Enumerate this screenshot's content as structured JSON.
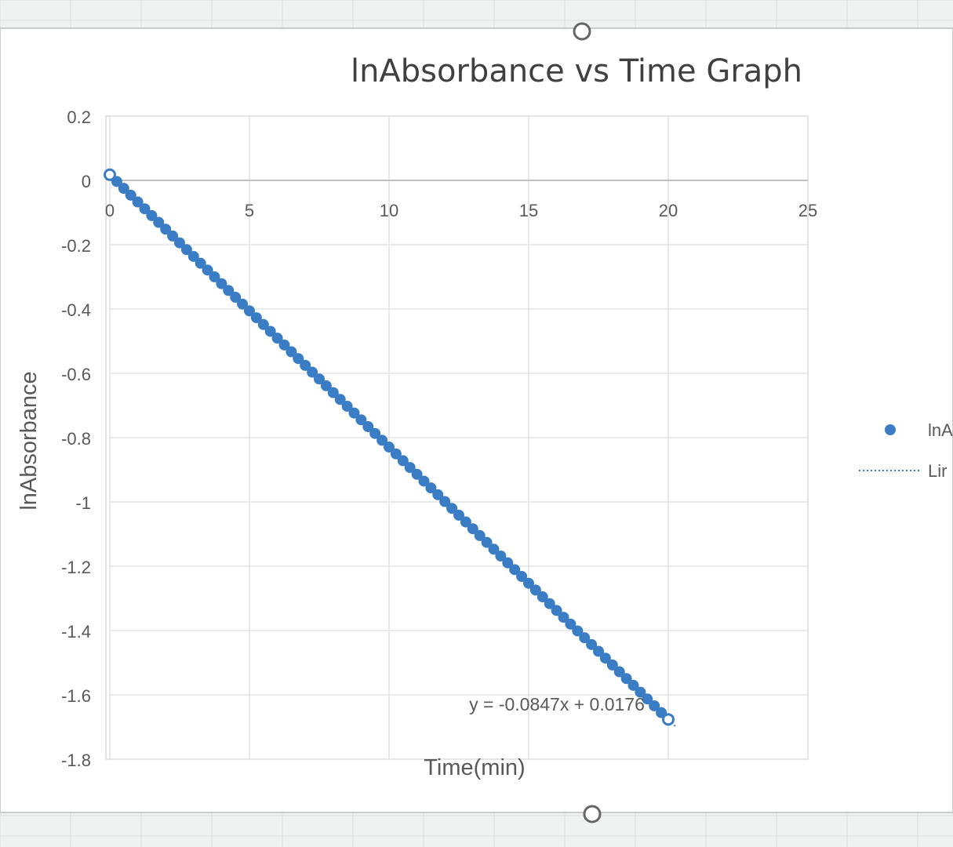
{
  "chart_data": {
    "type": "scatter",
    "title": "lnAbsorbance vs Time Graph",
    "xlabel": "Time(min)",
    "ylabel": "lnAbsorbance",
    "xlim": [
      0,
      25
    ],
    "ylim": [
      -1.8,
      0.2
    ],
    "xticks": [
      0,
      5,
      10,
      15,
      20,
      25
    ],
    "yticks": [
      0.2,
      0,
      -0.2,
      -0.4,
      -0.6,
      -0.8,
      -1,
      -1.2,
      -1.4,
      -1.6,
      -1.8
    ],
    "grid": true,
    "series": [
      {
        "name": "lnA",
        "color": "#3b7dc4",
        "x_start": 0,
        "x_end": 20,
        "x_step": 0.25,
        "slope": -0.0847,
        "intercept": 0.0176
      }
    ],
    "trendline": {
      "name": "Lir",
      "equation": "y = -0.0847x + 0.0176",
      "slope": -0.0847,
      "intercept": 0.0176
    },
    "legend": {
      "position": "right",
      "entries": [
        {
          "label": "lnA",
          "marker": "circle"
        },
        {
          "label": "Lir",
          "marker": "dotted-line"
        }
      ]
    }
  }
}
